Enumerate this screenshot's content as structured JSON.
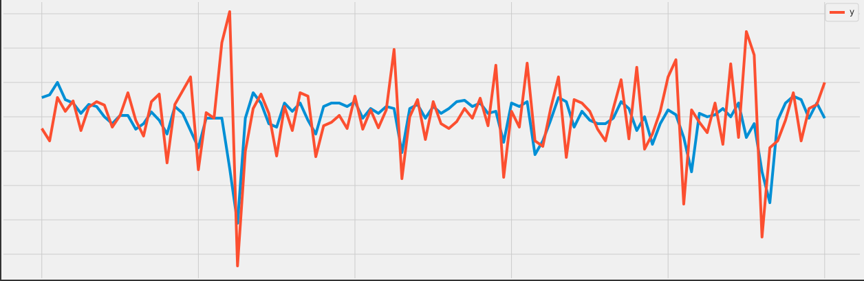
{
  "chart_data": {
    "type": "line",
    "x": [
      0,
      1,
      2,
      3,
      4,
      5,
      6,
      7,
      8,
      9,
      10,
      11,
      12,
      13,
      14,
      15,
      16,
      17,
      18,
      19,
      20,
      21,
      22,
      23,
      24,
      25,
      26,
      27,
      28,
      29,
      30,
      31,
      32,
      33,
      34,
      35,
      36,
      37,
      38,
      39,
      40,
      41,
      42,
      43,
      44,
      45,
      46,
      47,
      48,
      49,
      50,
      51,
      52,
      53,
      54,
      55,
      56,
      57,
      58,
      59,
      60,
      61,
      62,
      63,
      64,
      65,
      66,
      67,
      68,
      69,
      70,
      71,
      72,
      73,
      74,
      75,
      76,
      77,
      78,
      79,
      80,
      81,
      82,
      83,
      84,
      85,
      86,
      87,
      88,
      89,
      90,
      91,
      92,
      93,
      94,
      95,
      96,
      97,
      98,
      99,
      100
    ],
    "series": [
      {
        "color": "#008fd5",
        "values": [
          28,
          32,
          50,
          25,
          20,
          5,
          18,
          15,
          0,
          -10,
          2,
          2,
          -18,
          -10,
          7,
          -5,
          -25,
          15,
          5,
          -20,
          -45,
          -2,
          -2,
          -2,
          -75,
          -155,
          -2,
          35,
          20,
          -10,
          -15,
          20,
          8,
          20,
          -5,
          -25,
          15,
          20,
          20,
          15,
          22,
          -2,
          12,
          5,
          15,
          12,
          -52,
          12,
          18,
          -2,
          15,
          5,
          12,
          22,
          24,
          15,
          20,
          5,
          8,
          -37,
          20,
          15,
          22,
          -55,
          -35,
          -5,
          28,
          22,
          -15,
          8,
          -5,
          -10,
          -10,
          -2,
          22,
          12,
          -20,
          0,
          -40,
          -10,
          10,
          3,
          -30,
          -80,
          5,
          0,
          3,
          12,
          0,
          20,
          -30,
          -10,
          -80,
          -125,
          -5,
          20,
          30,
          25,
          -2,
          20,
          -2
        ]
      },
      {
        "name": "y",
        "color": "#fc4f30",
        "values": [
          -17,
          -35,
          28,
          8,
          23,
          -20,
          14,
          22,
          17,
          -15,
          2,
          35,
          -5,
          -28,
          22,
          33,
          -67,
          18,
          38,
          58,
          -77,
          6,
          -2,
          108,
          153,
          -217,
          -50,
          12,
          33,
          5,
          -57,
          15,
          -20,
          35,
          30,
          -58,
          -13,
          -8,
          2,
          -17,
          30,
          -18,
          10,
          -16,
          10,
          98,
          -90,
          0,
          25,
          -33,
          22,
          -10,
          -17,
          -7,
          12,
          -2,
          27,
          -13,
          75,
          -88,
          8,
          -15,
          78,
          -35,
          -43,
          12,
          58,
          -59,
          25,
          20,
          8,
          -18,
          -35,
          12,
          54,
          -32,
          72,
          -47,
          -25,
          8,
          58,
          83,
          -127,
          10,
          -8,
          -23,
          20,
          -40,
          77,
          -30,
          124,
          90,
          -175,
          -45,
          -35,
          -5,
          35,
          -35,
          12,
          18,
          50
        ]
      }
    ],
    "xlim": [
      -4.9,
      104.5
    ],
    "xticks": [
      0,
      20,
      40,
      60,
      80,
      100
    ],
    "ylim": [
      -235,
      167
    ],
    "yticks": [
      -200,
      -150,
      -100,
      -50,
      0,
      50,
      100,
      150
    ],
    "grid": true,
    "legend": "upper right"
  }
}
